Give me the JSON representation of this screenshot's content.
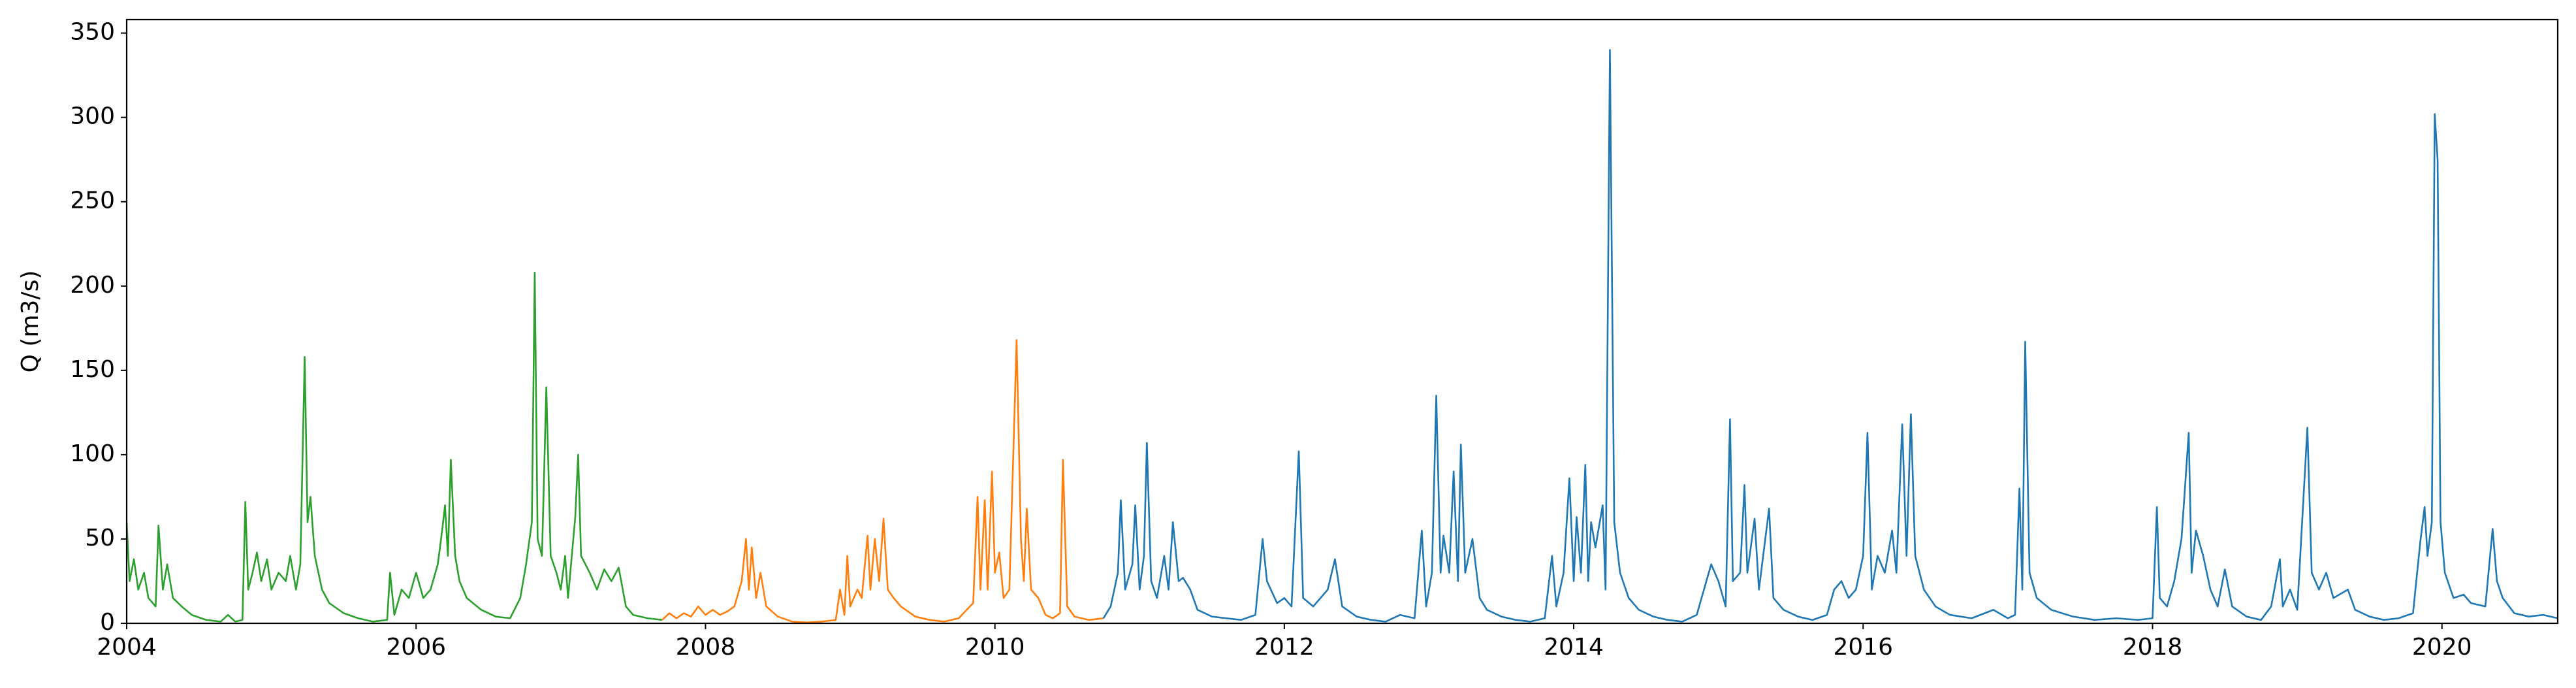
{
  "chart_data": {
    "type": "line",
    "ylabel": "Q (m3/s)",
    "xlim": [
      2004,
      2020.8
    ],
    "xticks": [
      2004,
      2006,
      2008,
      2010,
      2012,
      2014,
      2016,
      2018,
      2020
    ],
    "ylim": [
      0,
      358
    ],
    "yticks": [
      0,
      50,
      100,
      150,
      200,
      250,
      300,
      350
    ],
    "grid": false,
    "series": [
      {
        "color": "#2ca02c",
        "x": [
          2004.0,
          2004.02,
          2004.05,
          2004.08,
          2004.12,
          2004.15,
          2004.2,
          2004.22,
          2004.25,
          2004.28,
          2004.32,
          2004.38,
          2004.45,
          2004.55,
          2004.65,
          2004.7,
          2004.75,
          2004.8,
          2004.82,
          2004.84,
          2004.87,
          2004.9,
          2004.93,
          2004.97,
          2005.0,
          2005.05,
          2005.1,
          2005.13,
          2005.17,
          2005.2,
          2005.23,
          2005.25,
          2005.27,
          2005.3,
          2005.35,
          2005.4,
          2005.5,
          2005.6,
          2005.7,
          2005.8,
          2005.82,
          2005.85,
          2005.9,
          2005.95,
          2006.0,
          2006.05,
          2006.1,
          2006.15,
          2006.18,
          2006.2,
          2006.22,
          2006.24,
          2006.27,
          2006.3,
          2006.35,
          2006.45,
          2006.55,
          2006.65,
          2006.72,
          2006.76,
          2006.8,
          2006.82,
          2006.84,
          2006.87,
          2006.9,
          2006.93,
          2006.97,
          2007.0,
          2007.03,
          2007.05,
          2007.1,
          2007.12,
          2007.14,
          2007.2,
          2007.25,
          2007.3,
          2007.35,
          2007.4,
          2007.45,
          2007.5,
          2007.6,
          2007.7
        ],
        "values": [
          60,
          25,
          38,
          20,
          30,
          15,
          10,
          58,
          20,
          35,
          15,
          10,
          5,
          2,
          1,
          5,
          1,
          2,
          72,
          20,
          30,
          42,
          25,
          38,
          20,
          30,
          25,
          40,
          20,
          35,
          158,
          60,
          75,
          40,
          20,
          12,
          6,
          3,
          1,
          2,
          30,
          5,
          20,
          15,
          30,
          15,
          20,
          35,
          55,
          70,
          40,
          97,
          40,
          25,
          15,
          8,
          4,
          3,
          15,
          35,
          60,
          208,
          50,
          40,
          140,
          40,
          30,
          20,
          40,
          15,
          63,
          100,
          40,
          30,
          20,
          32,
          25,
          33,
          10,
          5,
          3,
          2
        ]
      },
      {
        "color": "#ff7f0e",
        "x": [
          2007.7,
          2007.75,
          2007.8,
          2007.85,
          2007.9,
          2007.95,
          2008.0,
          2008.05,
          2008.1,
          2008.15,
          2008.2,
          2008.25,
          2008.28,
          2008.3,
          2008.32,
          2008.35,
          2008.38,
          2008.42,
          2008.5,
          2008.6,
          2008.7,
          2008.8,
          2008.9,
          2008.93,
          2008.96,
          2008.98,
          2009.0,
          2009.05,
          2009.08,
          2009.12,
          2009.14,
          2009.17,
          2009.2,
          2009.23,
          2009.26,
          2009.3,
          2009.35,
          2009.45,
          2009.55,
          2009.65,
          2009.75,
          2009.85,
          2009.88,
          2009.9,
          2009.93,
          2009.95,
          2009.98,
          2010.0,
          2010.03,
          2010.06,
          2010.1,
          2010.15,
          2010.18,
          2010.2,
          2010.22,
          2010.25,
          2010.3,
          2010.35,
          2010.4,
          2010.45,
          2010.47,
          2010.5,
          2010.55,
          2010.65,
          2010.75
        ],
        "values": [
          2,
          6,
          3,
          6,
          4,
          10,
          5,
          8,
          5,
          7,
          10,
          25,
          50,
          20,
          45,
          15,
          30,
          10,
          4,
          1,
          0.5,
          1,
          2,
          20,
          5,
          40,
          10,
          20,
          15,
          52,
          20,
          50,
          25,
          62,
          20,
          15,
          10,
          4,
          2,
          1,
          3,
          12,
          75,
          20,
          73,
          20,
          90,
          30,
          42,
          15,
          20,
          168,
          50,
          25,
          68,
          20,
          15,
          5,
          3,
          6,
          97,
          10,
          4,
          2,
          3
        ]
      },
      {
        "color": "#1f77b4",
        "x": [
          2010.75,
          2010.8,
          2010.85,
          2010.87,
          2010.9,
          2010.95,
          2010.97,
          2011.0,
          2011.03,
          2011.05,
          2011.08,
          2011.12,
          2011.17,
          2011.2,
          2011.23,
          2011.27,
          2011.3,
          2011.35,
          2011.4,
          2011.5,
          2011.6,
          2011.7,
          2011.8,
          2011.85,
          2011.88,
          2011.95,
          2012.0,
          2012.05,
          2012.1,
          2012.13,
          2012.2,
          2012.3,
          2012.35,
          2012.4,
          2012.5,
          2012.6,
          2012.7,
          2012.8,
          2012.9,
          2012.95,
          2012.98,
          2013.02,
          2013.05,
          2013.08,
          2013.1,
          2013.14,
          2013.17,
          2013.2,
          2013.22,
          2013.25,
          2013.3,
          2013.35,
          2013.4,
          2013.5,
          2013.6,
          2013.7,
          2013.8,
          2013.85,
          2013.88,
          2013.93,
          2013.97,
          2014.0,
          2014.02,
          2014.05,
          2014.08,
          2014.1,
          2014.12,
          2014.15,
          2014.2,
          2014.22,
          2014.25,
          2014.28,
          2014.32,
          2014.38,
          2014.45,
          2014.55,
          2014.65,
          2014.75,
          2014.85,
          2014.9,
          2014.95,
          2015.0,
          2015.05,
          2015.08,
          2015.1,
          2015.15,
          2015.18,
          2015.2,
          2015.25,
          2015.28,
          2015.35,
          2015.38,
          2015.45,
          2015.55,
          2015.65,
          2015.75,
          2015.8,
          2015.85,
          2015.9,
          2015.95,
          2016.0,
          2016.03,
          2016.06,
          2016.1,
          2016.15,
          2016.2,
          2016.23,
          2016.27,
          2016.3,
          2016.33,
          2016.36,
          2016.42,
          2016.5,
          2016.6,
          2016.75,
          2016.9,
          2017.0,
          2017.05,
          2017.08,
          2017.1,
          2017.12,
          2017.15,
          2017.2,
          2017.3,
          2017.45,
          2017.6,
          2017.75,
          2017.9,
          2018.0,
          2018.03,
          2018.05,
          2018.1,
          2018.15,
          2018.2,
          2018.25,
          2018.27,
          2018.3,
          2018.35,
          2018.4,
          2018.45,
          2018.5,
          2018.55,
          2018.65,
          2018.75,
          2018.82,
          2018.88,
          2018.9,
          2018.95,
          2019.0,
          2019.07,
          2019.1,
          2019.15,
          2019.2,
          2019.25,
          2019.35,
          2019.4,
          2019.5,
          2019.6,
          2019.7,
          2019.8,
          2019.85,
          2019.88,
          2019.9,
          2019.93,
          2019.95,
          2019.97,
          2019.99,
          2020.02,
          2020.08,
          2020.15,
          2020.2,
          2020.3,
          2020.35,
          2020.38,
          2020.42,
          2020.5,
          2020.6,
          2020.7,
          2020.8
        ],
        "values": [
          3,
          10,
          30,
          73,
          20,
          35,
          70,
          20,
          40,
          107,
          25,
          15,
          40,
          20,
          60,
          25,
          27,
          20,
          8,
          4,
          3,
          2,
          5,
          50,
          25,
          12,
          15,
          10,
          102,
          15,
          10,
          20,
          38,
          10,
          4,
          2,
          1,
          5,
          3,
          55,
          10,
          30,
          135,
          30,
          52,
          30,
          90,
          25,
          106,
          30,
          50,
          15,
          8,
          4,
          2,
          1,
          3,
          40,
          10,
          30,
          86,
          25,
          63,
          30,
          94,
          25,
          60,
          45,
          70,
          20,
          340,
          60,
          30,
          15,
          8,
          4,
          2,
          1,
          5,
          20,
          35,
          25,
          10,
          121,
          25,
          30,
          82,
          30,
          62,
          20,
          68,
          15,
          8,
          4,
          2,
          5,
          20,
          25,
          15,
          20,
          40,
          113,
          20,
          40,
          30,
          55,
          30,
          118,
          40,
          124,
          40,
          20,
          10,
          5,
          3,
          8,
          3,
          5,
          80,
          20,
          167,
          30,
          15,
          8,
          4,
          2,
          3,
          2,
          3,
          69,
          15,
          10,
          25,
          50,
          113,
          30,
          55,
          40,
          20,
          10,
          32,
          10,
          4,
          2,
          10,
          38,
          10,
          20,
          8,
          116,
          30,
          20,
          30,
          15,
          20,
          8,
          4,
          2,
          3,
          6,
          48,
          69,
          40,
          60,
          302,
          275,
          60,
          30,
          15,
          17,
          12,
          10,
          56,
          25,
          15,
          6,
          4,
          5,
          3
        ]
      }
    ]
  }
}
